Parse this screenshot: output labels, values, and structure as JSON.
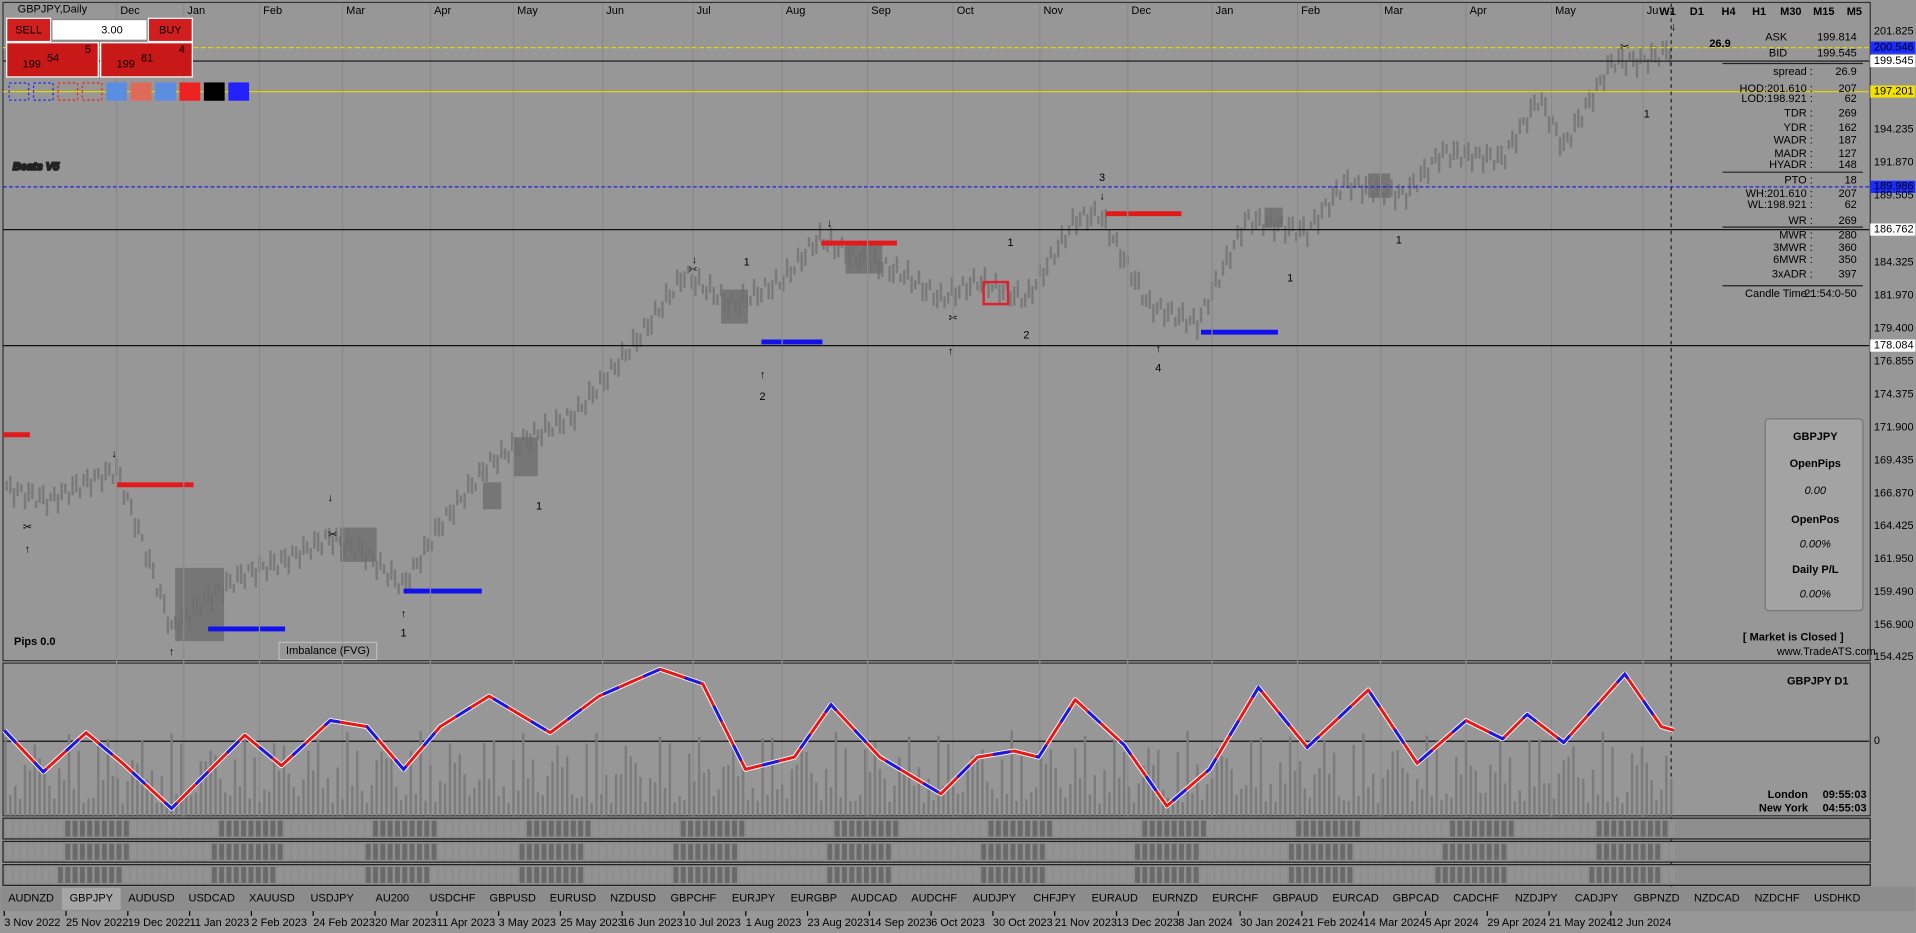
{
  "header": {
    "symbol": "GBPJPY,Daily"
  },
  "trade_panel": {
    "sell": "SELL",
    "buy": "BUY",
    "lots": "3.00",
    "sell_price": {
      "big": "199",
      "main": "54",
      "small": "5"
    },
    "buy_price": {
      "big": "199",
      "main": "81",
      "small": "4"
    }
  },
  "logo": "Beats V5",
  "months": [
    "Dec",
    "Jan",
    "Feb",
    "Mar",
    "Apr",
    "May",
    "Jun",
    "Jul",
    "Aug",
    "Sep",
    "Oct",
    "Nov",
    "Dec",
    "Jan",
    "Feb",
    "Mar",
    "Apr",
    "May",
    "Ju"
  ],
  "timeframes": [
    "W1",
    "D1",
    "H4",
    "H1",
    "M30",
    "M15",
    "M5"
  ],
  "spread_big": "26.9",
  "info": [
    [
      "ASK",
      "199.814"
    ],
    [
      "BID",
      "199.545"
    ],
    [
      "spread :",
      "26.9"
    ],
    [
      "HOD:201.610 :",
      "207"
    ],
    [
      "LOD:198.921 :",
      "62"
    ],
    [
      "TDR :",
      "269"
    ],
    [
      "YDR :",
      "162"
    ],
    [
      "WADR :",
      "187"
    ],
    [
      "MADR :",
      "127"
    ],
    [
      "HYADR :",
      "148"
    ],
    [
      "PTO :",
      "18"
    ],
    [
      "WH:201.610 :",
      "207"
    ],
    [
      "WL:198.921 :",
      "62"
    ],
    [
      "WR :",
      "269"
    ],
    [
      "MWR :",
      "280"
    ],
    [
      "3MWR :",
      "360"
    ],
    [
      "6MWR :",
      "350"
    ],
    [
      "3xADR :",
      "397"
    ],
    [
      "Candle Time :",
      "21:54:0-50"
    ]
  ],
  "price_axis": [
    "201.825",
    "200.546",
    "199.545",
    "197.201",
    "194.235",
    "191.870",
    "189.986",
    "189.505",
    "186.762",
    "184.325",
    "181.970",
    "179.400",
    "178.084",
    "176.855",
    "174.375",
    "171.900",
    "169.435",
    "166.870",
    "164.425",
    "161.950",
    "159.490",
    "156.900",
    "154.425"
  ],
  "osc_axis": "0",
  "stats_panel": {
    "symbol": "GBPJPY",
    "open_pips": "OpenPips",
    "open_pips_value": "0.00",
    "open_pos": "OpenPos",
    "open_pos_value": "0.00%",
    "daily_pl": "Daily P/L",
    "daily_pl_value": "0.00%"
  },
  "market_status": "[ Market is Closed ]",
  "website": "www.TradeATS.com",
  "osc_title": "GBPJPY  D1",
  "clocks": [
    [
      "London",
      "09:55:03"
    ],
    [
      "New York",
      "04:55:03"
    ]
  ],
  "pips": "Pips 0.0",
  "imbalance": "Imbalance (FVG)",
  "annotations": [
    "1",
    "2",
    "3",
    "4",
    "1",
    "1",
    "2",
    "1",
    "1",
    "1",
    "1"
  ],
  "symbols": [
    "AUDNZD",
    "GBPJPY",
    "AUDUSD",
    "USDCAD",
    "XAUUSD",
    "USDJPY",
    "AU200",
    "USDCHF",
    "GBPUSD",
    "EURUSD",
    "NZDUSD",
    "GBPCHF",
    "EURJPY",
    "EURGBP",
    "AUDCAD",
    "AUDCHF",
    "AUDJPY",
    "CHFJPY",
    "EURAUD",
    "EURNZD",
    "EURCHF",
    "GBPAUD",
    "EURCAD",
    "GBPCAD",
    "CADCHF",
    "NZDJPY",
    "CADJPY",
    "GBPNZD",
    "NZDCAD",
    "NZDCHF",
    "USDHKD"
  ],
  "dates": [
    "3 Nov 2022",
    "25 Nov 2022",
    "19 Dec 2022",
    "11 Jan 2023",
    "2 Feb 2023",
    "24 Feb 2023",
    "20 Mar 2023",
    "11 Apr 2023",
    "3 May 2023",
    "25 May 2023",
    "16 Jun 2023",
    "10 Jul 2023",
    "1 Aug 2023",
    "23 Aug 2023",
    "14 Sep 2023",
    "6 Oct 2023",
    "30 Oct 2023",
    "21 Nov 2023",
    "13 Dec 2023",
    "8 Jan 2024",
    "30 Jan 2024",
    "21 Feb 2024",
    "14 Mar 2024",
    "5 Apr 2024",
    "29 Apr 2024",
    "21 May 2024",
    "12 Jun 2024"
  ]
}
